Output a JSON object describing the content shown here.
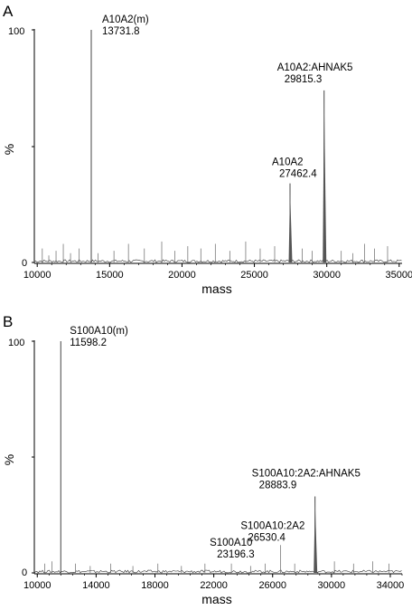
{
  "chart_data": [
    {
      "type": "line",
      "panel": "A",
      "xlabel": "mass",
      "ylabel": "%",
      "xlim": [
        9800,
        35200
      ],
      "ylim": [
        0,
        100
      ],
      "xticks": [
        10000,
        15000,
        20000,
        25000,
        30000,
        35000
      ],
      "yticks": [
        0,
        100
      ],
      "grid": false,
      "peaks": [
        {
          "x": 10350,
          "y": 6
        },
        {
          "x": 10800,
          "y": 3
        },
        {
          "x": 11300,
          "y": 5
        },
        {
          "x": 11800,
          "y": 8
        },
        {
          "x": 12300,
          "y": 4
        },
        {
          "x": 12900,
          "y": 6
        },
        {
          "x": 13731.8,
          "y": 100,
          "label": "A10A2(m)",
          "value": "13731.8"
        },
        {
          "x": 14200,
          "y": 4
        },
        {
          "x": 15300,
          "y": 5
        },
        {
          "x": 16300,
          "y": 8
        },
        {
          "x": 17400,
          "y": 6
        },
        {
          "x": 18600,
          "y": 9
        },
        {
          "x": 19500,
          "y": 5
        },
        {
          "x": 20400,
          "y": 7
        },
        {
          "x": 21300,
          "y": 6
        },
        {
          "x": 22300,
          "y": 8
        },
        {
          "x": 23300,
          "y": 5
        },
        {
          "x": 24400,
          "y": 9
        },
        {
          "x": 25400,
          "y": 6
        },
        {
          "x": 26400,
          "y": 7
        },
        {
          "x": 27462.4,
          "y": 34,
          "label": "A10A2",
          "value": "27462.4"
        },
        {
          "x": 28300,
          "y": 6
        },
        {
          "x": 29000,
          "y": 5
        },
        {
          "x": 29815.3,
          "y": 74,
          "label": "A10A2:AHNAK5",
          "value": "29815.3"
        },
        {
          "x": 31000,
          "y": 5
        },
        {
          "x": 31800,
          "y": 4
        },
        {
          "x": 32600,
          "y": 8
        },
        {
          "x": 33300,
          "y": 6
        },
        {
          "x": 34200,
          "y": 7
        }
      ]
    },
    {
      "type": "line",
      "panel": "B",
      "xlabel": "mass",
      "ylabel": "%",
      "xlim": [
        9800,
        34800
      ],
      "ylim": [
        0,
        100
      ],
      "xticks": [
        10000,
        14000,
        18000,
        22000,
        26000,
        30000,
        34000
      ],
      "yticks": [
        0,
        100
      ],
      "grid": false,
      "peaks": [
        {
          "x": 10500,
          "y": 4
        },
        {
          "x": 11000,
          "y": 5
        },
        {
          "x": 11598.2,
          "y": 100,
          "label": "S100A10(m)",
          "value": "11598.2"
        },
        {
          "x": 12600,
          "y": 4
        },
        {
          "x": 13600,
          "y": 3
        },
        {
          "x": 15000,
          "y": 4
        },
        {
          "x": 16500,
          "y": 3
        },
        {
          "x": 18200,
          "y": 4
        },
        {
          "x": 19800,
          "y": 3
        },
        {
          "x": 21400,
          "y": 4
        },
        {
          "x": 23196.3,
          "y": 4,
          "label": "S100A10",
          "value": "23196.3"
        },
        {
          "x": 24500,
          "y": 3
        },
        {
          "x": 25500,
          "y": 4
        },
        {
          "x": 26530.4,
          "y": 12,
          "label": "S100A10:2A2",
          "value": "26530.4"
        },
        {
          "x": 27500,
          "y": 4
        },
        {
          "x": 28883.9,
          "y": 33,
          "label": "S100A10:2A2:AHNAK5",
          "value": "28883.9"
        },
        {
          "x": 30200,
          "y": 5
        },
        {
          "x": 31500,
          "y": 4
        },
        {
          "x": 32800,
          "y": 5
        },
        {
          "x": 33900,
          "y": 4
        }
      ]
    }
  ]
}
